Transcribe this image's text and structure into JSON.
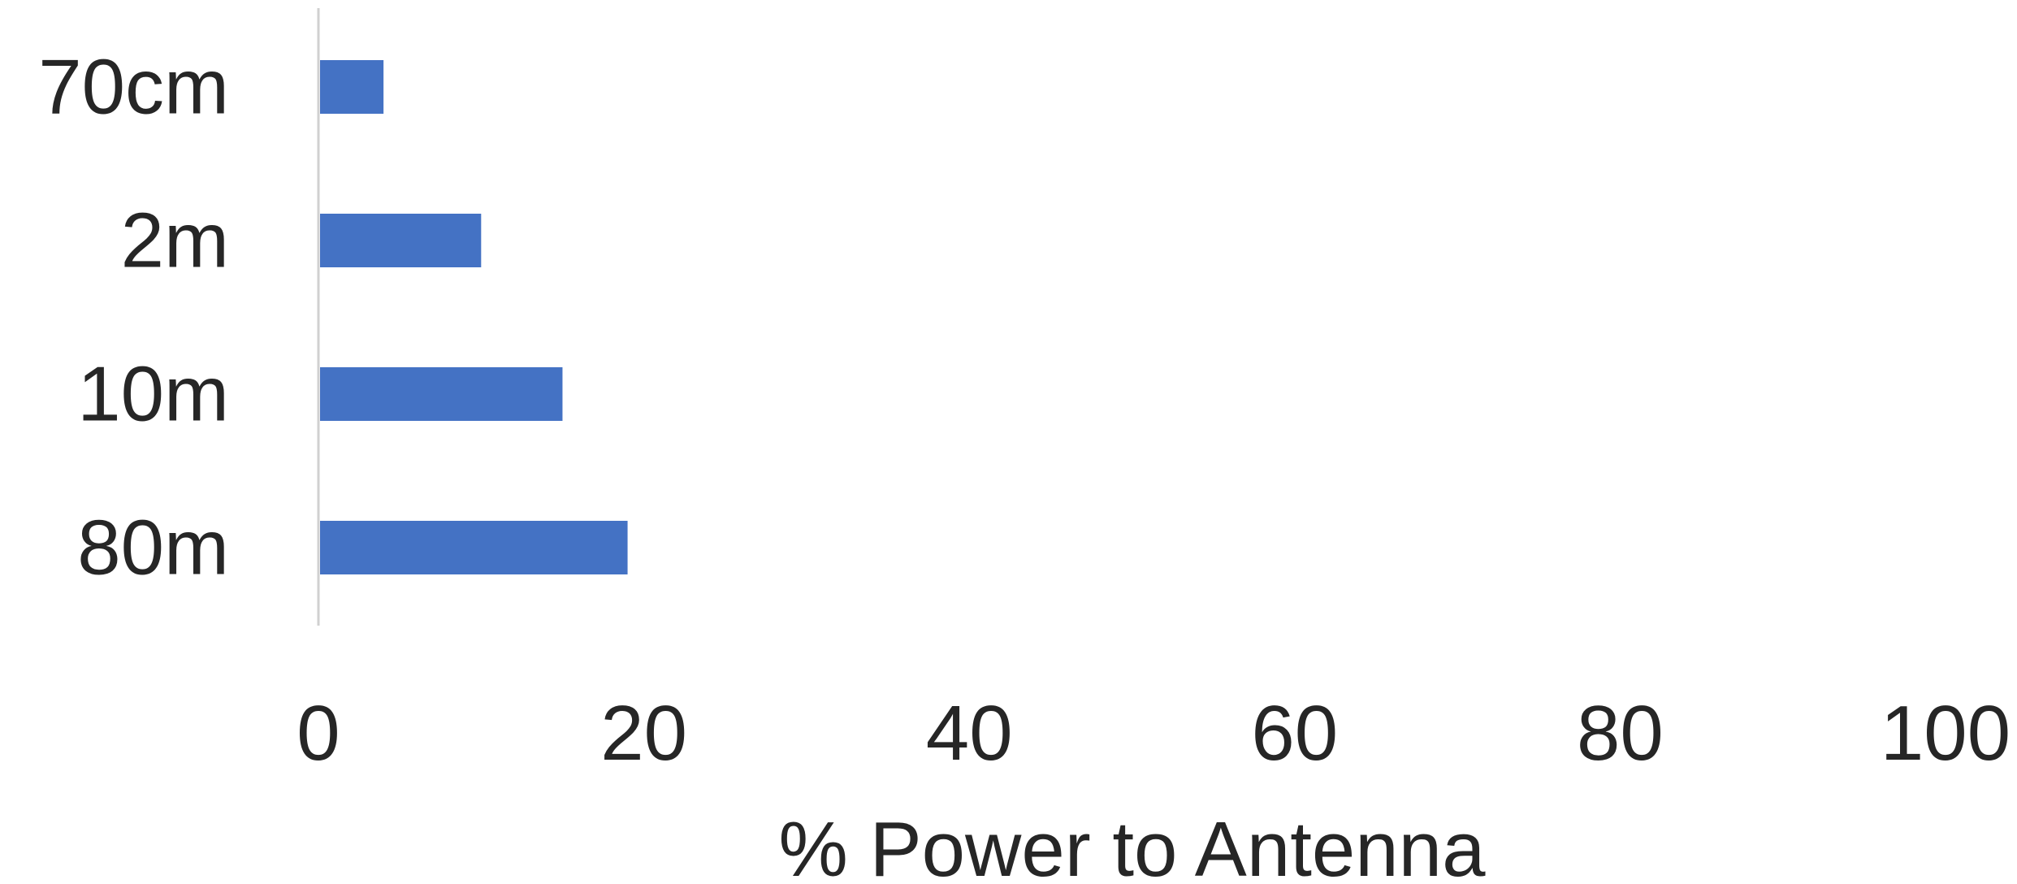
{
  "chart_data": {
    "type": "bar",
    "orientation": "horizontal",
    "categories": [
      "70cm",
      "2m",
      "10m",
      "80m"
    ],
    "values": [
      4,
      10,
      15,
      19
    ],
    "xlabel": "% Power to Antenna",
    "ylabel": "",
    "xlim": [
      0,
      100
    ],
    "xticks": [
      "0",
      "20",
      "40",
      "60",
      "80",
      "100"
    ],
    "grid": false,
    "legend": "none",
    "bar_color": "#4472C4",
    "axis_color": "#d0d0d0"
  }
}
